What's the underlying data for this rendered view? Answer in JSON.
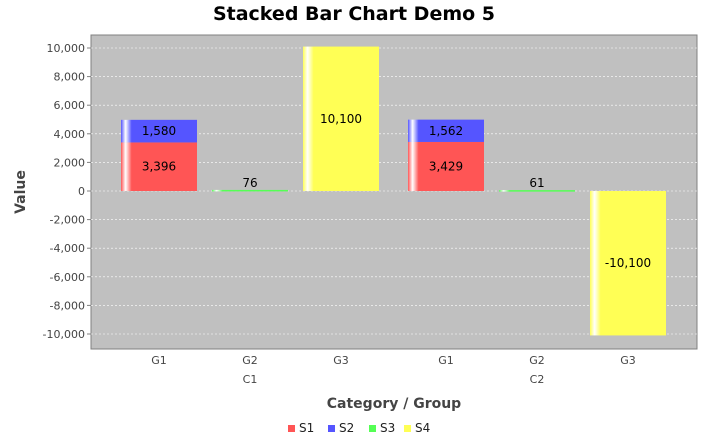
{
  "chart_data": {
    "type": "bar",
    "stacked": true,
    "title": "Stacked Bar Chart Demo 5",
    "xlabel": "Category / Group",
    "ylabel": "Value",
    "ylim": [
      -10000,
      10000
    ],
    "yticks": [
      -10000,
      -8000,
      -6000,
      -4000,
      -2000,
      0,
      2000,
      4000,
      6000,
      8000,
      10000
    ],
    "ytick_labels": [
      "-10,000",
      "-8,000",
      "-6,000",
      "-4,000",
      "-2,000",
      "0",
      "2,000",
      "4,000",
      "6,000",
      "8,000",
      "10,000"
    ],
    "groups": [
      {
        "name": "C1",
        "categories": [
          "G1",
          "G2",
          "G3"
        ]
      },
      {
        "name": "C2",
        "categories": [
          "G1",
          "G2",
          "G3"
        ]
      }
    ],
    "series": [
      {
        "name": "S1",
        "color": "#ff5555",
        "values": [
          3396,
          0,
          0,
          3429,
          0,
          0
        ]
      },
      {
        "name": "S2",
        "color": "#5555ff",
        "values": [
          1580,
          0,
          0,
          1562,
          0,
          0
        ]
      },
      {
        "name": "S3",
        "color": "#55ff55",
        "values": [
          0,
          76,
          0,
          0,
          61,
          0
        ]
      },
      {
        "name": "S4",
        "color": "#ffff55",
        "values": [
          0,
          0,
          10100,
          0,
          0,
          -10100
        ]
      }
    ],
    "value_labels": [
      {
        "bar": 0,
        "series": 0,
        "text": "3,396"
      },
      {
        "bar": 0,
        "series": 1,
        "text": "1,580"
      },
      {
        "bar": 1,
        "series": 2,
        "text": "76"
      },
      {
        "bar": 2,
        "series": 3,
        "text": "10,100"
      },
      {
        "bar": 3,
        "series": 0,
        "text": "3,429"
      },
      {
        "bar": 3,
        "series": 1,
        "text": "1,562"
      },
      {
        "bar": 4,
        "series": 2,
        "text": "61"
      },
      {
        "bar": 5,
        "series": 3,
        "text": "-10,100"
      }
    ],
    "legend_position": "bottom",
    "grid": true,
    "plot_background": "#c0c0c0"
  }
}
